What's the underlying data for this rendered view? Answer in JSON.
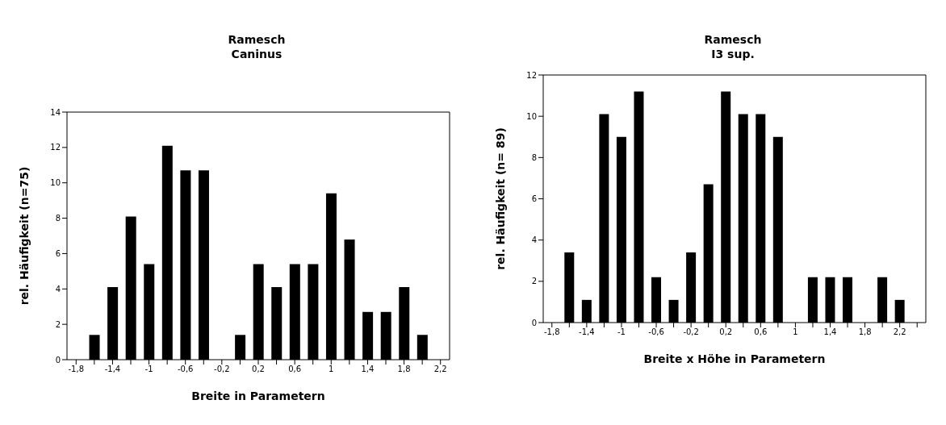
{
  "chart_data": [
    {
      "type": "bar",
      "title": "Ramesch\nCaninus",
      "xlabel": "Breite in Parametern",
      "ylabel": "rel. Häufigkeit (n=75)",
      "categories": [
        "-1,8",
        null,
        "-1,4",
        null,
        "-1",
        null,
        "-0,6",
        null,
        "-0,2",
        null,
        "0,2",
        null,
        "0,6",
        null,
        "1",
        null,
        "1,4",
        null,
        "1,8",
        null,
        "2,2"
      ],
      "values": [
        0,
        1.4,
        4.1,
        8.1,
        5.4,
        12.1,
        10.7,
        10.7,
        0,
        1.4,
        5.4,
        4.1,
        5.4,
        5.4,
        9.4,
        6.8,
        2.7,
        2.7,
        4.1,
        1.4,
        0
      ],
      "color": "#000000",
      "ylim": [
        0,
        14
      ],
      "yticks": [
        0,
        2,
        4,
        6,
        8,
        10,
        12,
        14
      ],
      "grid": false,
      "legend": false
    },
    {
      "type": "bar",
      "title": "Ramesch\nI3 sup.",
      "xlabel": "Breite x Höhe in Parametern",
      "ylabel": "rel. Häufigkeit (n= 89)",
      "categories": [
        "-1,8",
        null,
        "-1,4",
        null,
        "-1",
        null,
        "-0,6",
        null,
        "-0,2",
        null,
        "0,2",
        null,
        "0,6",
        null,
        "1",
        null,
        "1,4",
        null,
        "1,8",
        null,
        "2,2",
        null
      ],
      "values": [
        0,
        3.4,
        1.1,
        10.1,
        9,
        11.2,
        2.2,
        1.1,
        3.4,
        6.7,
        11.2,
        10.1,
        10.1,
        9,
        0,
        2.2,
        2.2,
        2.2,
        0,
        2.2,
        1.1,
        0
      ],
      "color": "#000000",
      "ylim": [
        0,
        12
      ],
      "yticks": [
        0,
        2,
        4,
        6,
        8,
        10,
        12
      ],
      "grid": false,
      "legend": false
    }
  ]
}
